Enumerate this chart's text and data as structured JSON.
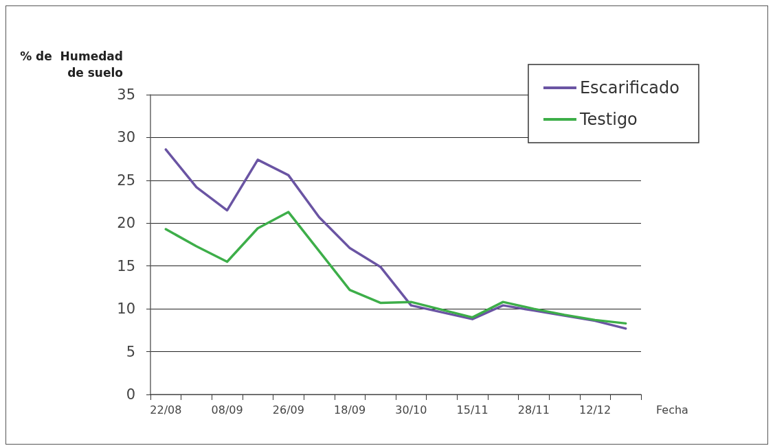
{
  "chart_data": {
    "type": "line",
    "ylabel": "% de  Humedad\nde suelo",
    "xlabel": "Fecha",
    "categories": [
      "22/08",
      null,
      "08/09",
      null,
      "26/09",
      null,
      "18/09",
      null,
      "30/10",
      null,
      "15/11",
      null,
      "28/11",
      null,
      "12/12",
      null
    ],
    "series": [
      {
        "name": "Escarificado",
        "color": "#6a54a3",
        "values": [
          28.6,
          24.2,
          21.5,
          27.4,
          25.6,
          20.7,
          17.1,
          14.9,
          10.4,
          null,
          8.8,
          10.4,
          9.8,
          9.2,
          8.6,
          7.7
        ]
      },
      {
        "name": "Testigo",
        "color": "#3dae49",
        "values": [
          19.3,
          17.3,
          15.5,
          19.4,
          21.3,
          null,
          12.2,
          10.7,
          10.8,
          null,
          9.0,
          10.8,
          10.0,
          9.3,
          8.7,
          8.3
        ]
      }
    ],
    "ylim": [
      0,
      35
    ],
    "yticks": [
      0,
      5,
      10,
      15,
      20,
      25,
      30,
      35
    ],
    "grid": "y",
    "legend": "top right",
    "marker": "none",
    "line_style": "solid"
  }
}
